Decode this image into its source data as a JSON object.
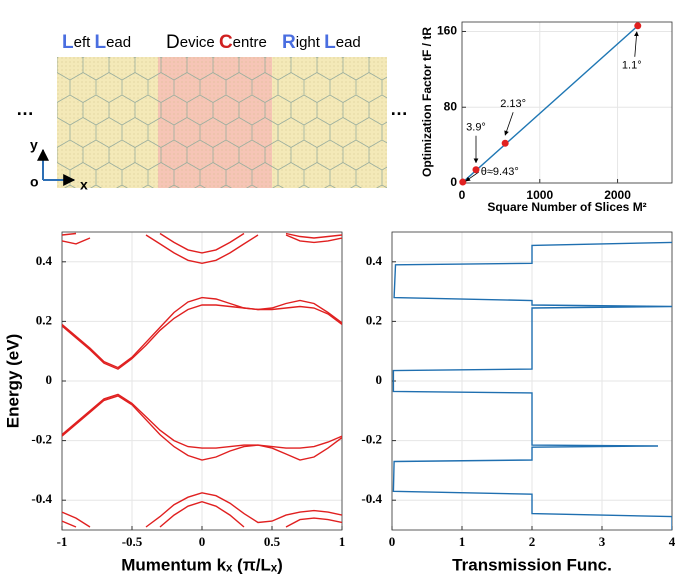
{
  "diagram": {
    "left_lead": "Left Lead",
    "device": "Device Centre",
    "right_lead": "Right Lead",
    "ellipsis_left": "…",
    "ellipsis_right": "…",
    "axis_y": "y",
    "axis_origin": "o",
    "axis_x": "x"
  },
  "chart_data": [
    {
      "type": "scatter",
      "xlabel": "Square Number of Slices M²",
      "ylabel": "Optimization Factor tF / tR",
      "x": [
        10,
        180,
        555,
        2260
      ],
      "values": [
        1,
        14,
        42,
        166
      ],
      "color": "#e02020",
      "point_labels": [
        "θ≈9.43°",
        "3.9°",
        "2.13°",
        "1.1°"
      ],
      "line": {
        "x": [
          0,
          2260
        ],
        "values": [
          0,
          166
        ],
        "color": "#1f77b4"
      },
      "xlim": [
        0,
        2700
      ],
      "ylim": [
        0,
        170
      ],
      "xticks": [
        0,
        1000,
        2000
      ],
      "yticks": [
        0,
        80,
        160
      ],
      "grid": true
    },
    {
      "type": "line",
      "xlabel": "Mumentum kₓ (π/Lₓ)",
      "ylabel": "Energy (eV)",
      "x": [
        -1,
        -0.9,
        -0.8,
        -0.7,
        -0.6,
        -0.5,
        -0.4,
        -0.3,
        -0.2,
        -0.1,
        0,
        0.1,
        0.2,
        0.3,
        0.4,
        0.5,
        0.6,
        0.7,
        0.8,
        0.9,
        1
      ],
      "series": [
        {
          "color": "#e02020",
          "values": [
            0.19,
            0.15,
            0.11,
            0.065,
            0.045,
            0.08,
            0.13,
            0.18,
            0.23,
            0.265,
            0.28,
            0.275,
            0.26,
            0.245,
            0.24,
            0.245,
            0.26,
            0.27,
            0.26,
            0.23,
            0.195
          ]
        },
        {
          "color": "#e02020",
          "values": [
            0.185,
            0.145,
            0.105,
            0.06,
            0.04,
            0.075,
            0.12,
            0.17,
            0.21,
            0.24,
            0.255,
            0.255,
            0.25,
            0.245,
            0.24,
            0.24,
            0.245,
            0.25,
            0.245,
            0.225,
            0.19
          ]
        },
        {
          "color": "#e02020",
          "values": [
            -0.18,
            -0.14,
            -0.1,
            -0.06,
            -0.045,
            -0.075,
            -0.12,
            -0.165,
            -0.2,
            -0.22,
            -0.225,
            -0.225,
            -0.22,
            -0.215,
            -0.215,
            -0.22,
            -0.225,
            -0.225,
            -0.22,
            -0.205,
            -0.185
          ]
        },
        {
          "color": "#e02020",
          "values": [
            -0.185,
            -0.145,
            -0.105,
            -0.065,
            -0.05,
            -0.08,
            -0.13,
            -0.18,
            -0.22,
            -0.25,
            -0.265,
            -0.255,
            -0.235,
            -0.22,
            -0.215,
            -0.225,
            -0.245,
            -0.265,
            -0.255,
            -0.225,
            -0.19
          ]
        },
        {
          "color": "#e02020",
          "values": [
            0.49,
            0.495,
            null,
            null,
            null,
            null,
            null,
            0.495,
            0.465,
            0.44,
            0.43,
            0.44,
            0.465,
            0.495,
            null,
            null,
            0.495,
            0.485,
            0.48,
            0.485,
            0.49
          ]
        },
        {
          "color": "#e02020",
          "values": [
            0.47,
            0.46,
            0.48,
            null,
            null,
            null,
            0.49,
            0.46,
            0.43,
            0.405,
            0.395,
            0.405,
            0.43,
            0.46,
            0.49,
            null,
            0.49,
            0.47,
            0.465,
            0.47,
            0.48
          ]
        },
        {
          "color": "#e02020",
          "values": [
            -0.44,
            -0.46,
            -0.49,
            null,
            null,
            null,
            -0.49,
            -0.455,
            -0.415,
            -0.39,
            -0.375,
            -0.385,
            -0.41,
            -0.445,
            -0.475,
            -0.47,
            -0.45,
            -0.44,
            -0.435,
            -0.44,
            -0.45
          ]
        },
        {
          "color": "#e02020",
          "values": [
            -0.47,
            -0.49,
            null,
            null,
            null,
            null,
            null,
            -0.49,
            -0.45,
            -0.42,
            -0.405,
            -0.42,
            -0.45,
            -0.49,
            null,
            null,
            -0.49,
            -0.465,
            -0.46,
            -0.465,
            -0.475
          ]
        }
      ],
      "xlim": [
        -1,
        1
      ],
      "ylim": [
        -0.5,
        0.5
      ],
      "xticks": [
        -1,
        -0.5,
        0,
        0.5,
        1
      ],
      "yticks": [
        -0.4,
        -0.2,
        0,
        0.2,
        0.4
      ],
      "grid": true
    },
    {
      "type": "line",
      "xlabel": "Transmission Func.",
      "x": [
        4.0,
        2.0,
        2.0,
        0.05,
        0.03,
        2.0,
        2.0,
        4.0,
        2.0,
        2.0,
        2.0,
        0.02,
        0.02,
        2.0,
        2.0,
        3.8,
        2.0,
        2.0,
        0.03,
        0.02,
        2.0,
        2.0,
        4.0,
        4.0
      ],
      "values": [
        0.465,
        0.455,
        0.395,
        0.39,
        0.28,
        0.27,
        0.255,
        0.25,
        0.245,
        0.235,
        0.04,
        0.035,
        -0.035,
        -0.04,
        -0.215,
        -0.218,
        -0.222,
        -0.265,
        -0.27,
        -0.37,
        -0.38,
        -0.445,
        -0.455,
        -0.5
      ],
      "color": "#1f6fb0",
      "xlim": [
        0,
        4
      ],
      "ylim": [
        -0.5,
        0.5
      ],
      "xticks": [
        0,
        1,
        2,
        3,
        4
      ],
      "yticks": [
        -0.4,
        -0.2,
        0,
        0.2,
        0.4
      ],
      "grid": true
    }
  ]
}
